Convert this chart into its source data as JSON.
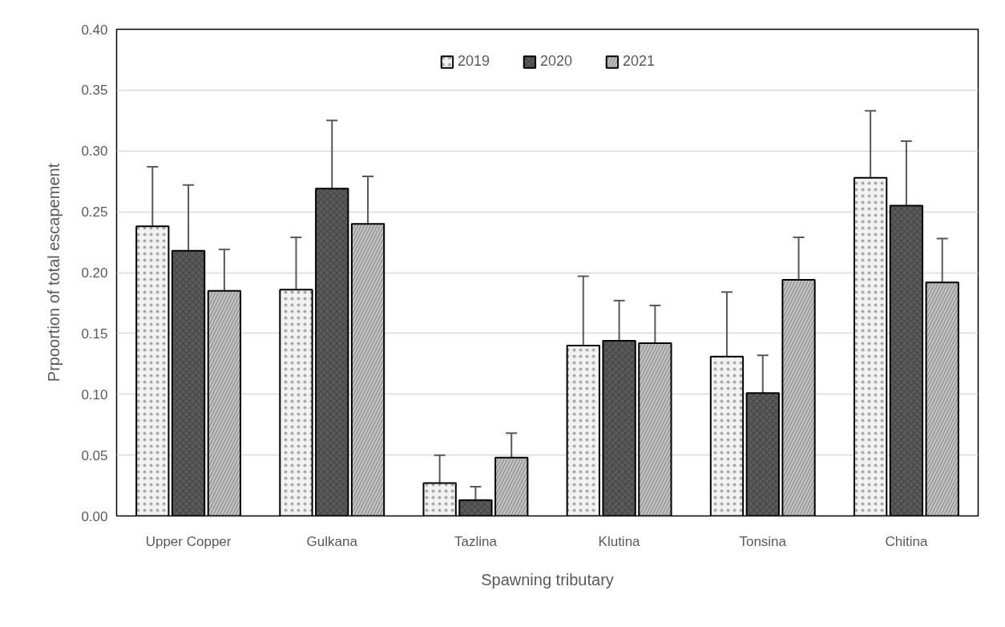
{
  "chart_data": {
    "type": "bar",
    "xlabel": "Spawning tributary",
    "ylabel": "Prpoortion of total escapement",
    "categories": [
      "Upper Copper",
      "Gulkana",
      "Tazlina",
      "Klutina",
      "Tonsina",
      "Chitina"
    ],
    "series": [
      {
        "name": "2019",
        "color": "#f2f2f2",
        "values": [
          0.238,
          0.186,
          0.027,
          0.14,
          0.131,
          0.278
        ],
        "errors": [
          [
            0.19,
            0.287
          ],
          [
            0.144,
            0.229
          ],
          [
            0.005,
            0.05
          ],
          [
            0.082,
            0.197
          ],
          [
            0.078,
            0.184
          ],
          [
            0.222,
            0.333
          ]
        ]
      },
      {
        "name": "2020",
        "color": "#595959",
        "values": [
          0.218,
          0.269,
          0.013,
          0.144,
          0.101,
          0.255
        ],
        "errors": [
          [
            0.165,
            0.272
          ],
          [
            0.213,
            0.325
          ],
          [
            0.002,
            0.024
          ],
          [
            0.111,
            0.177
          ],
          [
            0.07,
            0.132
          ],
          [
            0.201,
            0.308
          ]
        ]
      },
      {
        "name": "2021",
        "color": "#bfbfbf",
        "values": [
          0.185,
          0.24,
          0.048,
          0.142,
          0.194,
          0.192
        ],
        "errors": [
          [
            0.151,
            0.219
          ],
          [
            0.2,
            0.279
          ],
          [
            0.028,
            0.068
          ],
          [
            0.11,
            0.173
          ],
          [
            0.159,
            0.229
          ],
          [
            0.155,
            0.228
          ]
        ]
      }
    ],
    "ylim": [
      0,
      0.4
    ],
    "yticks": [
      {
        "value": 0,
        "label": "0.00"
      },
      {
        "value": 0.05,
        "label": "0.05"
      },
      {
        "value": 0.1,
        "label": "0.10"
      },
      {
        "value": 0.15,
        "label": "0.15"
      },
      {
        "value": 0.2,
        "label": "0.20"
      },
      {
        "value": 0.25,
        "label": "0.25"
      },
      {
        "value": 0.3,
        "label": "0.30"
      },
      {
        "value": 0.35,
        "label": "0.35"
      },
      {
        "value": 0.4,
        "label": "0.40"
      }
    ],
    "grid": "y",
    "legend": "top"
  }
}
